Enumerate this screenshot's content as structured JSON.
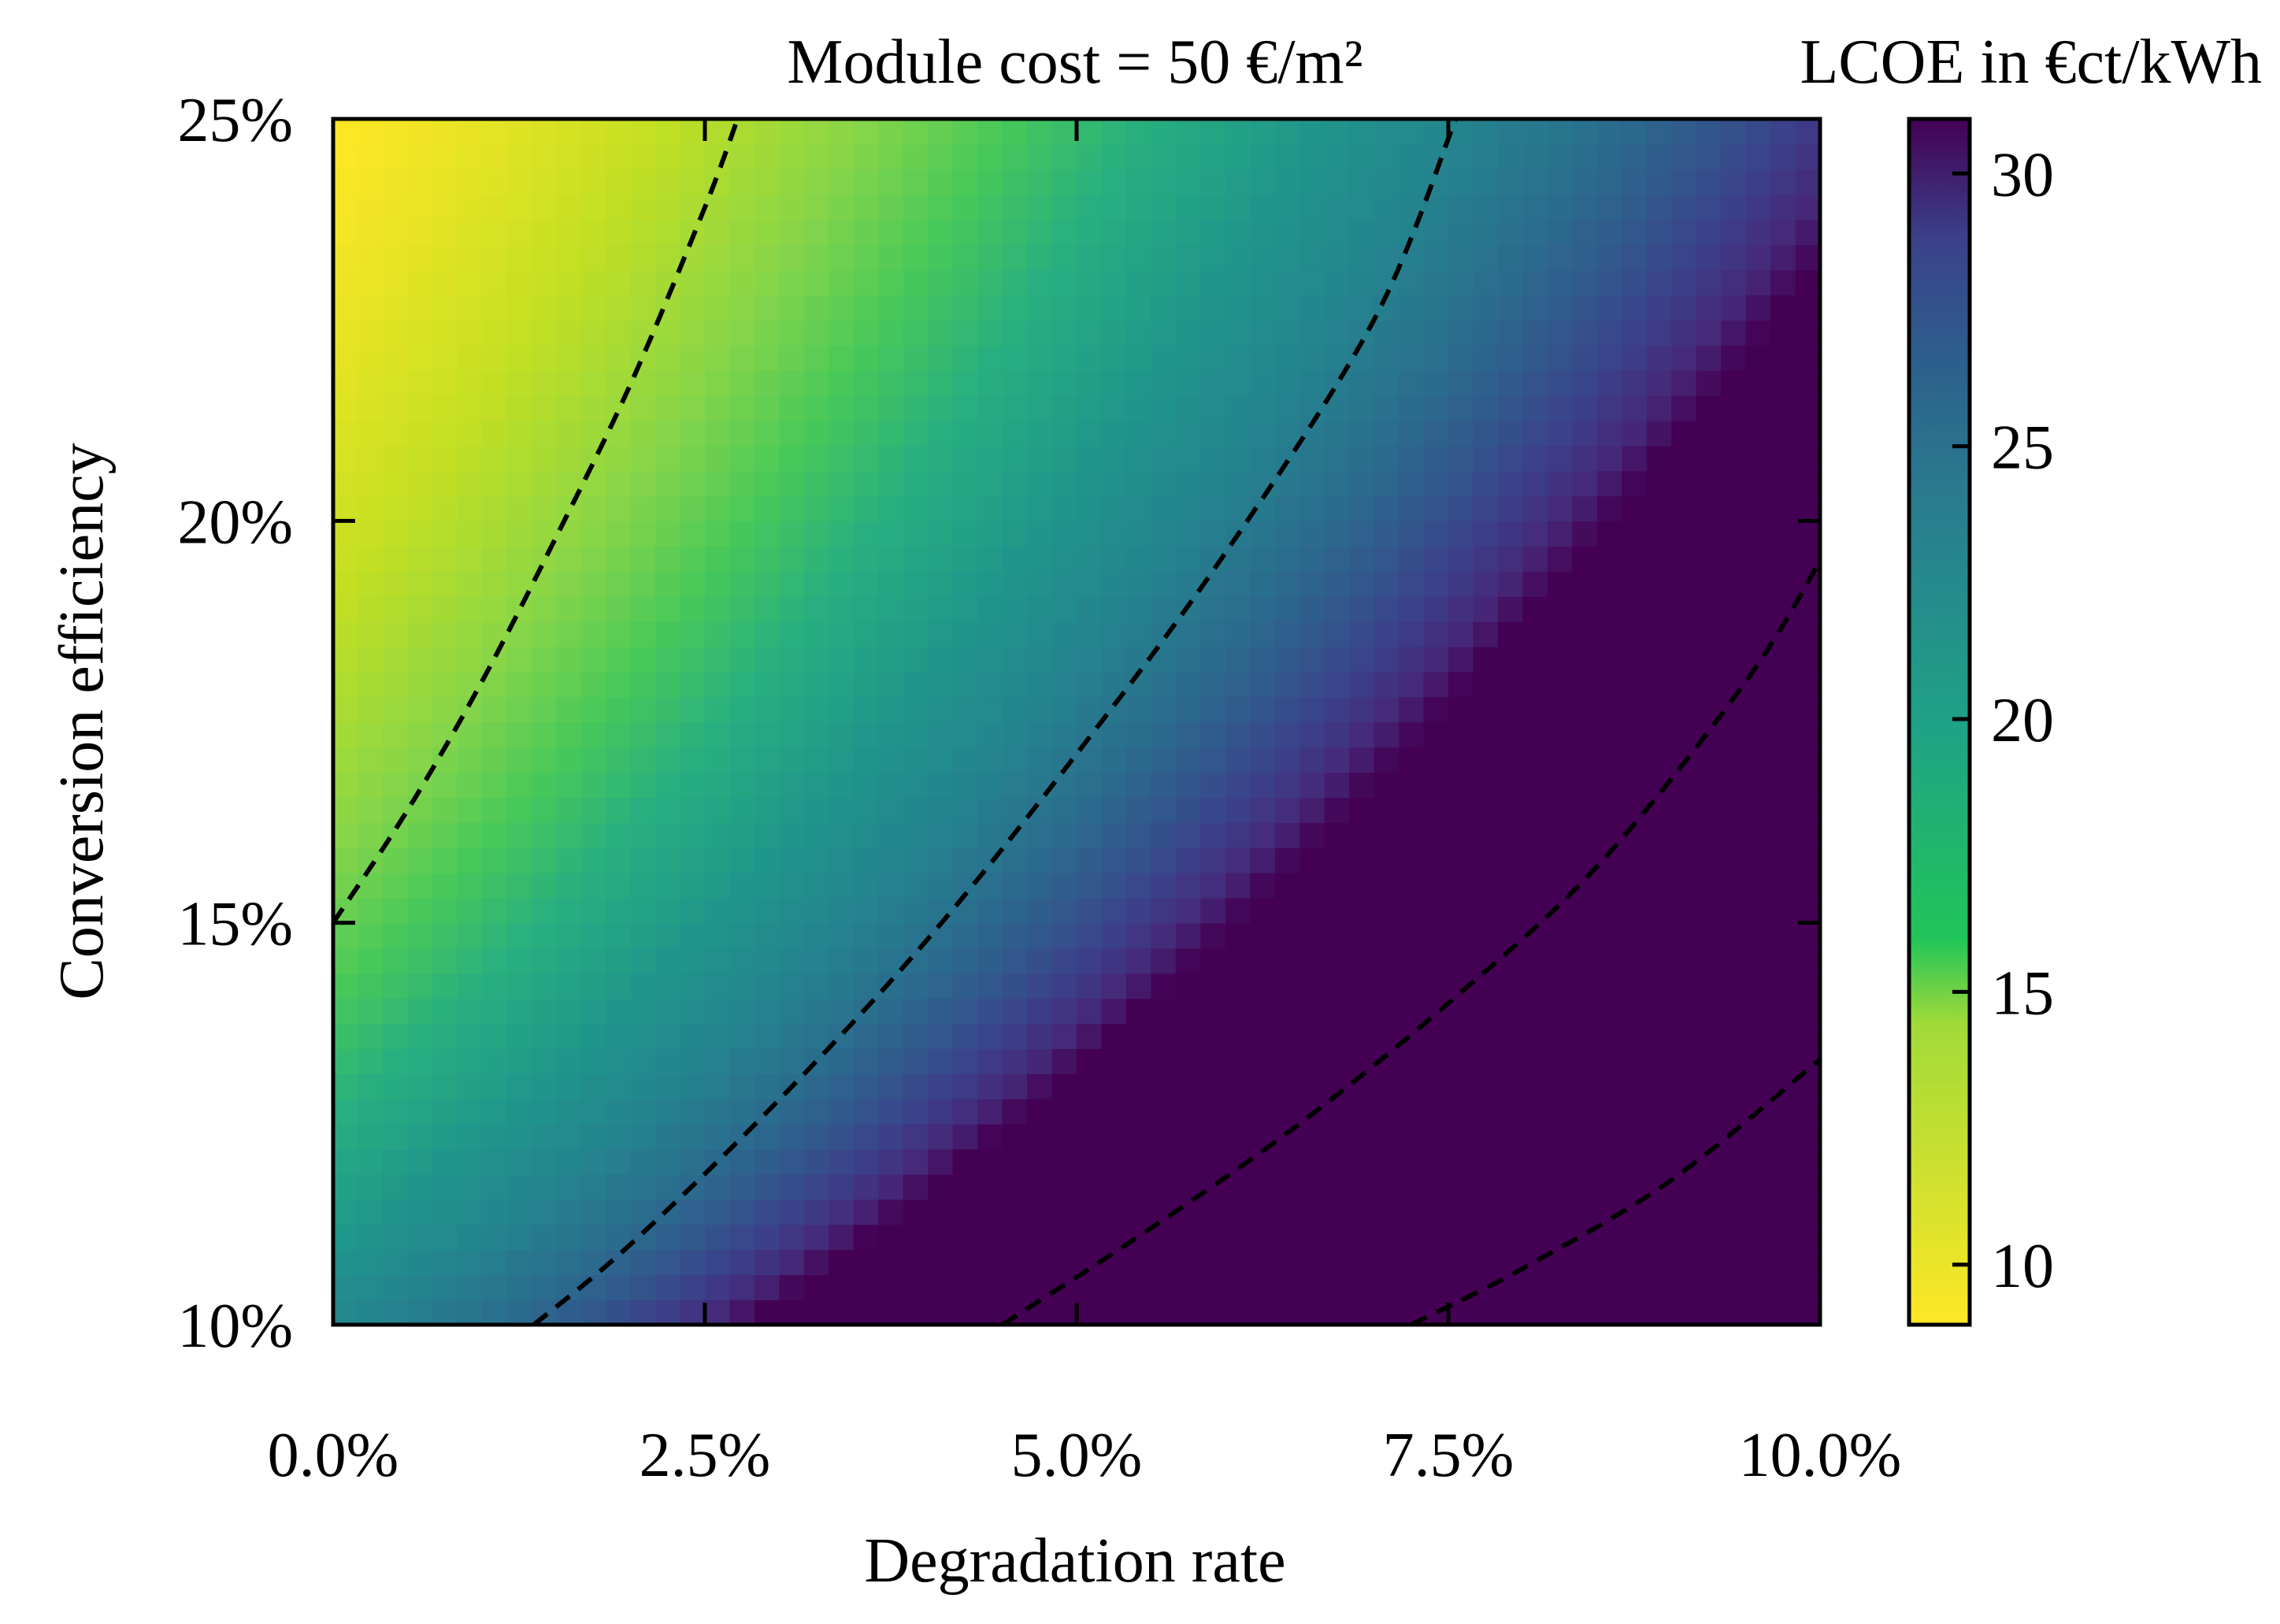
{
  "chart_data": {
    "type": "heatmap",
    "title": "Module cost = 50 €/m²",
    "colorbar_title": "LCOE in €ct/kWh",
    "xlabel": "Degradation rate",
    "ylabel": "Conversion efficiency",
    "x_unit": "%",
    "y_unit": "%",
    "xlim": [
      0.0,
      10.0
    ],
    "ylim": [
      10,
      25
    ],
    "x_ticks": [
      0.0,
      2.5,
      5.0,
      7.5,
      10.0
    ],
    "x_tick_labels": [
      "0.0%",
      "2.5%",
      "5.0%",
      "7.5%",
      "10.0%"
    ],
    "y_ticks": [
      10,
      15,
      20,
      25
    ],
    "y_tick_labels": [
      "10%",
      "15%",
      "20%",
      "25%"
    ],
    "colorbar_range": [
      8.9,
      31.0
    ],
    "colorbar_ticks": [
      10,
      15,
      20,
      25,
      30
    ],
    "colorbar_tick_labels": [
      "10",
      "15",
      "20",
      "25",
      "30"
    ],
    "colormap": "viridis_r",
    "grid": false,
    "contour_line_style": "dashed",
    "contours": [
      {
        "name": "contour-1",
        "points": [
          [
            0.0,
            15.0
          ],
          [
            0.5,
            16.4
          ],
          [
            1.0,
            18.0
          ],
          [
            1.5,
            19.8
          ],
          [
            2.0,
            21.7
          ],
          [
            2.5,
            23.9
          ],
          [
            2.72,
            25.0
          ]
        ]
      },
      {
        "name": "contour-2",
        "points": [
          [
            1.35,
            10.0
          ],
          [
            2.0,
            11.0
          ],
          [
            3.0,
            12.8
          ],
          [
            4.0,
            14.8
          ],
          [
            5.0,
            17.1
          ],
          [
            6.0,
            19.6
          ],
          [
            7.0,
            22.5
          ],
          [
            7.55,
            25.0
          ]
        ]
      },
      {
        "name": "contour-3",
        "points": [
          [
            4.5,
            10.0
          ],
          [
            5.5,
            11.2
          ],
          [
            6.5,
            12.5
          ],
          [
            7.5,
            14.0
          ],
          [
            8.5,
            15.7
          ],
          [
            9.5,
            18.0
          ],
          [
            10.0,
            19.5
          ]
        ]
      },
      {
        "name": "contour-4",
        "points": [
          [
            7.25,
            10.0
          ],
          [
            8.0,
            10.7
          ],
          [
            9.0,
            11.8
          ],
          [
            10.0,
            13.3
          ]
        ]
      }
    ]
  }
}
